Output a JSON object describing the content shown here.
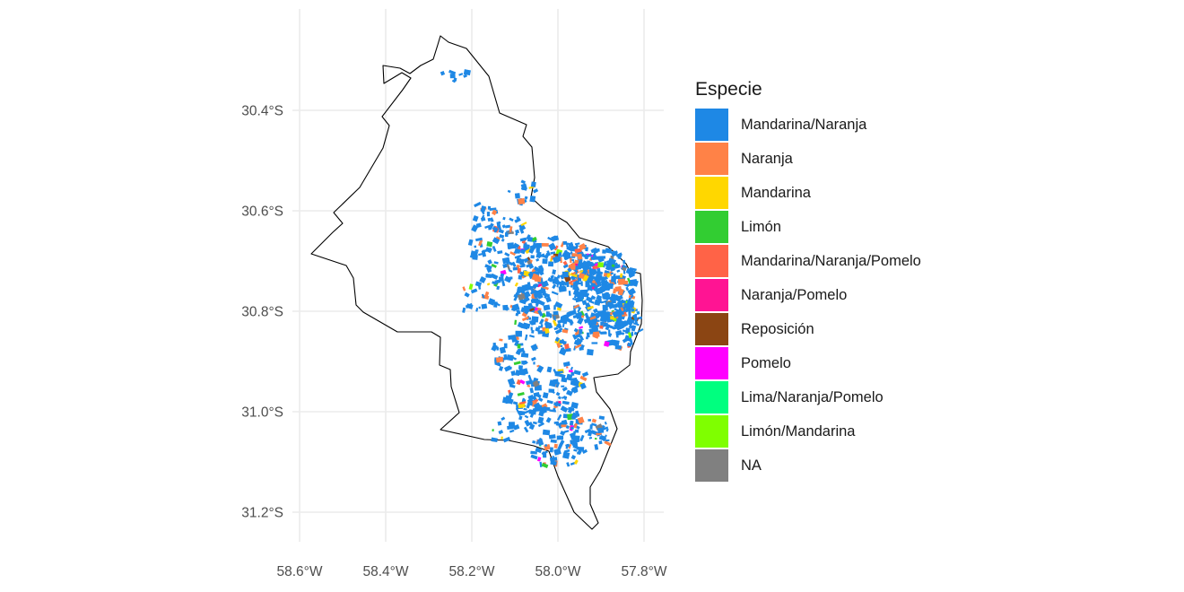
{
  "chart_data": {
    "type": "map",
    "axes": {
      "x_ticks": [
        "58.6°W",
        "58.4°W",
        "58.2°W",
        "58.0°W",
        "57.8°W"
      ],
      "y_ticks": [
        "30.4°S",
        "30.6°S",
        "30.8°S",
        "31.0°S",
        "31.2°S"
      ]
    },
    "legend": {
      "title": "Especie",
      "items": [
        {
          "label": "Mandarina/Naranja",
          "color": "#1e88e5"
        },
        {
          "label": "Naranja",
          "color": "#ff8247"
        },
        {
          "label": "Mandarina",
          "color": "#ffd700"
        },
        {
          "label": "Limón",
          "color": "#32cd32"
        },
        {
          "label": "Mandarina/Naranja/Pomelo",
          "color": "#ff6347"
        },
        {
          "label": "Naranja/Pomelo",
          "color": "#ff1493"
        },
        {
          "label": "Reposición",
          "color": "#8b4513"
        },
        {
          "label": "Pomelo",
          "color": "#ff00ff"
        },
        {
          "label": "Lima/Naranja/Pomelo",
          "color": "#00ff7f"
        },
        {
          "label": "Limón/Mandarina",
          "color": "#7fff00"
        },
        {
          "label": "NA",
          "color": "#808080"
        }
      ]
    }
  }
}
